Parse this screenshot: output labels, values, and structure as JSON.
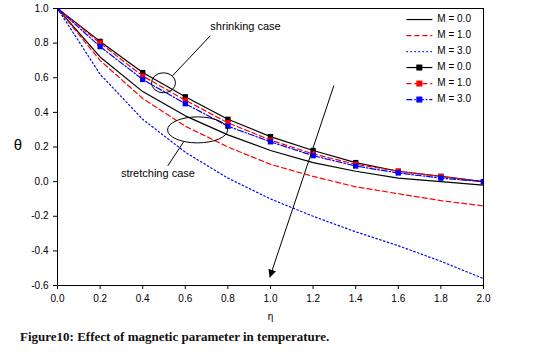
{
  "chart_data": {
    "type": "line",
    "caption": "Figure10: Effect of magnetic parameter in temperature.",
    "x_label": "η",
    "y_label": "θ",
    "annotations": [
      "shrinking case",
      "stretching case"
    ],
    "x": [
      0.0,
      0.2,
      0.4,
      0.6,
      0.8,
      1.0,
      1.2,
      1.4,
      1.6,
      1.8,
      2.0
    ],
    "series": [
      {
        "name": "M = 0.0",
        "color": "#000000",
        "line_style": "solid",
        "marker": "none",
        "values": [
          1.0,
          0.72,
          0.52,
          0.38,
          0.27,
          0.18,
          0.11,
          0.06,
          0.02,
          0.0,
          -0.02
        ]
      },
      {
        "name": "M = 1.0",
        "color": "#ff0000",
        "line_style": "dashed",
        "marker": "none",
        "values": [
          1.0,
          0.7,
          0.48,
          0.32,
          0.2,
          0.1,
          0.03,
          -0.03,
          -0.07,
          -0.11,
          -0.14
        ]
      },
      {
        "name": "M = 3.0",
        "color": "#0000ff",
        "line_style": "dotted",
        "marker": "none",
        "values": [
          1.0,
          0.62,
          0.36,
          0.17,
          0.02,
          -0.1,
          -0.2,
          -0.29,
          -0.37,
          -0.46,
          -0.56
        ]
      },
      {
        "name": "M = 0.0",
        "color": "#000000",
        "line_style": "solid",
        "marker": "square",
        "values": [
          1.0,
          0.81,
          0.63,
          0.49,
          0.36,
          0.26,
          0.18,
          0.11,
          0.06,
          0.03,
          0.0
        ]
      },
      {
        "name": "M = 1.0",
        "color": "#ff0000",
        "line_style": "dashed",
        "marker": "square",
        "values": [
          1.0,
          0.8,
          0.61,
          0.47,
          0.34,
          0.24,
          0.16,
          0.1,
          0.06,
          0.03,
          0.0
        ]
      },
      {
        "name": "M = 3.0",
        "color": "#0000ff",
        "line_style": "dashdot",
        "marker": "square",
        "values": [
          1.0,
          0.78,
          0.59,
          0.45,
          0.32,
          0.23,
          0.15,
          0.09,
          0.05,
          0.02,
          0.0
        ]
      }
    ],
    "xlim": [
      0.0,
      2.0
    ],
    "xticks": [
      {
        "value": 0,
        "label": "0.0"
      },
      {
        "value": 0.2,
        "label": "0.2"
      },
      {
        "value": 0.4,
        "label": "0.4"
      },
      {
        "value": 0.6,
        "label": "0.6"
      },
      {
        "value": 0.8,
        "label": "0.8"
      },
      {
        "value": 1,
        "label": "1.0"
      },
      {
        "value": 1.2,
        "label": "1.2"
      },
      {
        "value": 1.4,
        "label": "1.4"
      },
      {
        "value": 1.6,
        "label": "1.6"
      },
      {
        "value": 1.8,
        "label": "1.8"
      },
      {
        "value": 2,
        "label": "2.0"
      }
    ],
    "ylim": [
      -0.6,
      1.0
    ],
    "yticks": [
      {
        "value": -0.6,
        "label": "-0.6"
      },
      {
        "value": -0.4,
        "label": "-0.4"
      },
      {
        "value": -0.2,
        "label": "-0.2"
      },
      {
        "value": 0,
        "label": "0.0"
      },
      {
        "value": 0.2,
        "label": "0.2"
      },
      {
        "value": 0.4,
        "label": "0.4"
      },
      {
        "value": 0.6,
        "label": "0.6"
      },
      {
        "value": 0.8,
        "label": "0.8"
      },
      {
        "value": 1,
        "label": "1.0"
      }
    ],
    "grid": false,
    "legend": "upper right"
  }
}
